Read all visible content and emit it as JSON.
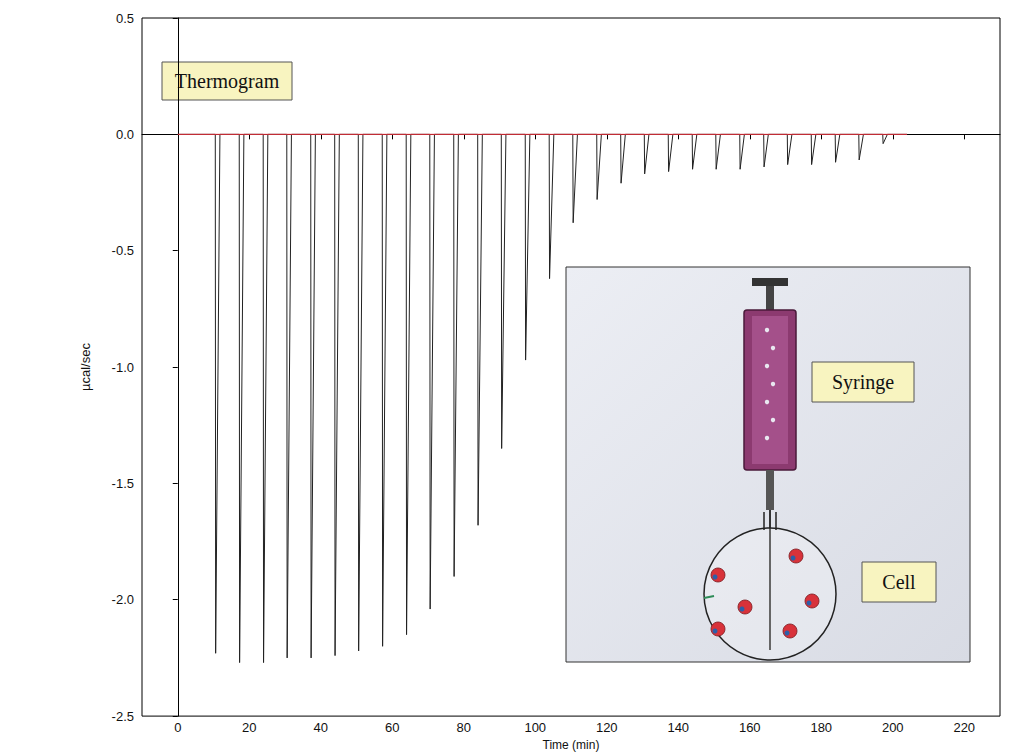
{
  "chart_data": {
    "type": "line",
    "x_label": "Time (min)",
    "y_label": "µcal/sec",
    "annotations": [
      "Thermogram",
      "Syringe",
      "Cell"
    ],
    "marker": "none",
    "line_style": "solid",
    "grid": false,
    "xlim": [
      -10,
      230
    ],
    "xticks": [
      0,
      20,
      40,
      60,
      80,
      100,
      120,
      140,
      160,
      180,
      200,
      220
    ],
    "ylim": [
      -2.5,
      0.5
    ],
    "yticks": [
      -2.5,
      {
        "value": -2,
        "label": "-2.0"
      },
      -1.5,
      {
        "value": -1,
        "label": "-1.0"
      },
      -0.5,
      {
        "value": 0,
        "label": "0.0"
      },
      0.5
    ],
    "x": [
      0,
      10.5,
      10.6,
      11.8,
      17.2,
      17.3,
      18.5,
      23.9,
      24.0,
      25.2,
      30.5,
      30.6,
      31.8,
      37.2,
      37.3,
      38.5,
      43.9,
      44.0,
      45.2,
      50.5,
      50.6,
      51.8,
      57.2,
      57.3,
      58.5,
      63.9,
      64.0,
      65.2,
      70.5,
      70.6,
      71.8,
      77.2,
      77.3,
      78.5,
      83.9,
      84.0,
      85.2,
      90.5,
      90.6,
      91.8,
      97.2,
      97.3,
      98.5,
      103.9,
      104.0,
      105.2,
      110.5,
      110.6,
      111.8,
      117.2,
      117.3,
      118.5,
      123.9,
      124.0,
      125.2,
      130.5,
      130.6,
      131.8,
      137.2,
      137.3,
      138.5,
      143.9,
      144.0,
      145.2,
      150.5,
      150.6,
      151.8,
      157.2,
      157.3,
      158.5,
      163.9,
      164.0,
      165.2,
      170.5,
      170.6,
      171.8,
      177.2,
      177.3,
      178.5,
      183.9,
      184.0,
      185.2,
      190.5,
      190.6,
      191.8,
      197.2,
      197.3,
      198.5,
      204
    ],
    "series": [
      {
        "color": "#e0303a",
        "x": [
          0,
          204
        ],
        "values": [
          0,
          0
        ]
      },
      {
        "color": "#222222",
        "values": [
          0,
          0,
          -2.23,
          0,
          0,
          -2.27,
          0,
          0,
          -2.27,
          0,
          0,
          -2.25,
          0,
          0,
          -2.25,
          0,
          0,
          -2.24,
          0,
          0,
          -2.22,
          0,
          0,
          -2.2,
          0,
          0,
          -2.15,
          0,
          0,
          -2.04,
          0,
          0,
          -1.9,
          0,
          0,
          -1.68,
          0,
          0,
          -1.35,
          0,
          0,
          -0.97,
          0,
          0,
          -0.62,
          0,
          0,
          -0.38,
          0,
          0,
          -0.28,
          0,
          0,
          -0.21,
          0,
          0,
          -0.17,
          0,
          0,
          -0.16,
          0,
          0,
          -0.15,
          0,
          0,
          -0.15,
          0,
          0,
          -0.15,
          0,
          0,
          -0.14,
          0,
          0,
          -0.13,
          0,
          0,
          -0.13,
          0,
          0,
          -0.12,
          0,
          0,
          -0.11,
          0,
          0,
          -0.04,
          0,
          0
        ]
      }
    ]
  }
}
